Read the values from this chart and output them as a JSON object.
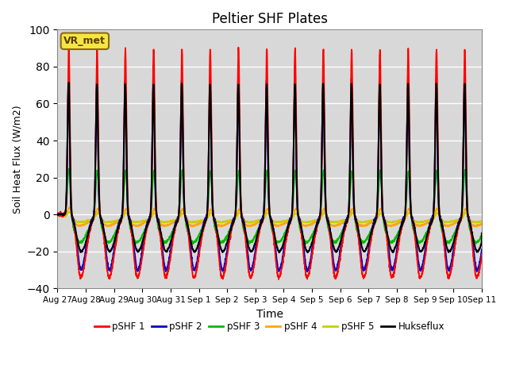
{
  "title": "Peltier SHF Plates",
  "xlabel": "Time",
  "ylabel": "Soil Heat Flux (W/m2)",
  "ylim": [
    -40,
    100
  ],
  "yticks": [
    -40,
    -20,
    0,
    20,
    40,
    60,
    80,
    100
  ],
  "annotation_text": "VR_met",
  "annotation_box_facecolor": "#F5E642",
  "annotation_box_edgecolor": "#8B6914",
  "annotation_text_color": "#5C3D00",
  "bg_color": "#D8D8D8",
  "series": [
    {
      "label": "pSHF 1",
      "color": "#FF0000"
    },
    {
      "label": "pSHF 2",
      "color": "#0000CC"
    },
    {
      "label": "pSHF 3",
      "color": "#00BB00"
    },
    {
      "label": "pSHF 4",
      "color": "#FFA500"
    },
    {
      "label": "pSHF 5",
      "color": "#CCCC00"
    },
    {
      "label": "Hukseflux",
      "color": "#000000"
    }
  ],
  "tick_labels": [
    "Aug 27",
    "Aug 28",
    "Aug 29",
    "Aug 30",
    "Aug 31",
    "Sep 1",
    "Sep 2",
    "Sep 3",
    "Sep 4",
    "Sep 5",
    "Sep 6",
    "Sep 7",
    "Sep 8",
    "Sep 9",
    "Sep 10",
    "Sep 11"
  ],
  "n_days": 15
}
